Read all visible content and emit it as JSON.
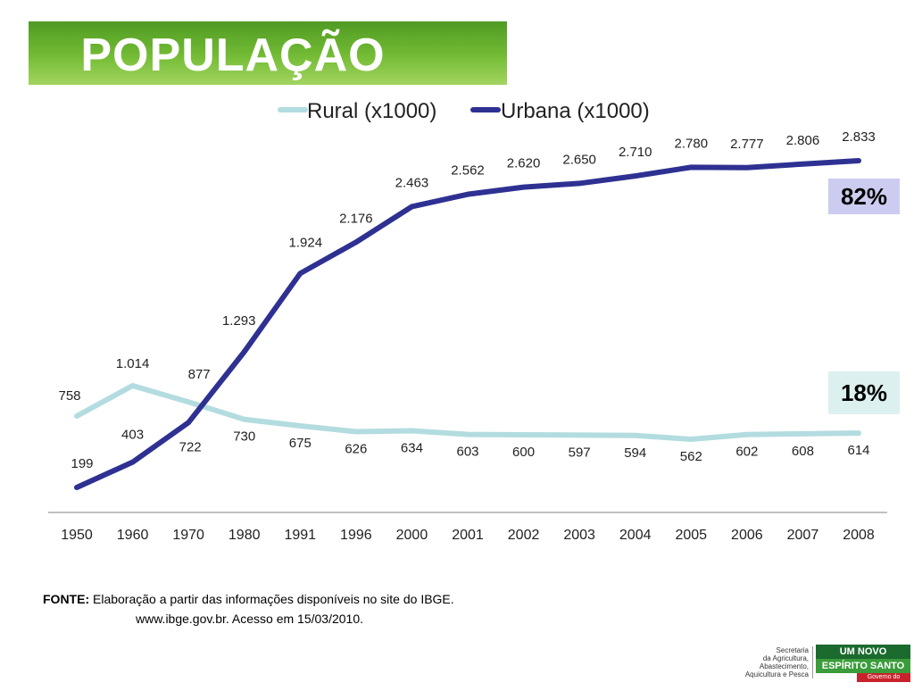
{
  "slide": {
    "title": "POPULAÇÃO",
    "pct_urban": "82%",
    "pct_rural": "18%",
    "source_label": "FONTE:",
    "source_text": " Elaboração a partir das informações disponíveis no site do IBGE.",
    "source_line2": "www.ibge.gov.br. Acesso em 15/03/2010.",
    "logo": {
      "agency": [
        "Secretaria",
        "da Agricultura,",
        "Abastecimento,",
        "Aquicultura e Pesca"
      ],
      "top": "UM NOVO",
      "mid": "ESPÍRITO SANTO",
      "bot": "Governo do Estado"
    }
  },
  "chart_data": {
    "type": "line",
    "categories": [
      "1950",
      "1960",
      "1970",
      "1980",
      "1991",
      "1996",
      "2000",
      "2001",
      "2002",
      "2003",
      "2004",
      "2005",
      "2006",
      "2007",
      "2008"
    ],
    "series": [
      {
        "name": "Rural (x1000)",
        "color": "#b3dce0",
        "values": [
          758,
          1014,
          877,
          730,
          675,
          626,
          634,
          603,
          600,
          597,
          594,
          562,
          602,
          608,
          614
        ],
        "labels": [
          "758",
          "1.014",
          "877",
          "730",
          "675",
          "626",
          "634",
          "603",
          "600",
          "597",
          "594",
          "562",
          "602",
          "608",
          "614"
        ]
      },
      {
        "name": "Urbana (x1000)",
        "color": "#2e3192",
        "values": [
          199,
          403,
          722,
          1293,
          1924,
          2176,
          2463,
          2562,
          2620,
          2650,
          2710,
          2780,
          2777,
          2806,
          2833
        ],
        "labels": [
          "199",
          "403",
          "722",
          "1.293",
          "1.924",
          "2.176",
          "2.463",
          "2.562",
          "2.620",
          "2.650",
          "2.710",
          "2.780",
          "2.777",
          "2.806",
          "2.833"
        ]
      }
    ],
    "legend": "top",
    "grid": false
  }
}
